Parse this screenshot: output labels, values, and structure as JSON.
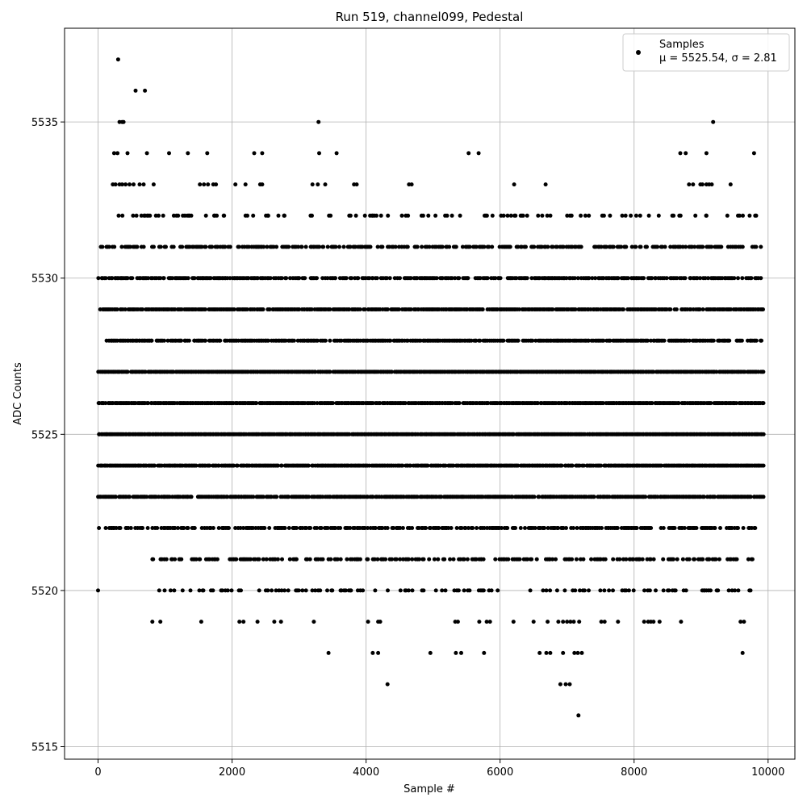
{
  "chart_data": {
    "type": "scatter",
    "title": "Run 519, channel099, Pedestal",
    "xlabel": "Sample #",
    "ylabel": "ADC Counts",
    "xlim": [
      -500,
      10400
    ],
    "ylim": [
      5514.6,
      5538.0
    ],
    "xticks": [
      0,
      2000,
      4000,
      6000,
      8000,
      10000
    ],
    "yticks": [
      5515,
      5520,
      5525,
      5530,
      5535
    ],
    "grid": true,
    "legend": {
      "position": "top-right",
      "entries": [
        {
          "label": "Samples",
          "stats": "μ = 5525.54, σ = 2.81"
        }
      ]
    },
    "series": [
      {
        "name": "Samples",
        "color": "#000000",
        "marker": "circle",
        "n_samples": 10000,
        "levels": [
          {
            "y": 5531,
            "x_start": 0,
            "x_end": 9880,
            "density": 0.55
          },
          {
            "y": 5530,
            "x_start": 0,
            "x_end": 9880,
            "density": 0.7
          },
          {
            "y": 5529,
            "x_start": 0,
            "x_end": 9920,
            "density": 0.85
          },
          {
            "y": 5528,
            "x_start": 0,
            "x_end": 9920,
            "density": 0.8
          },
          {
            "y": 5527,
            "x_start": 0,
            "x_end": 9920,
            "density": 0.97
          },
          {
            "y": 5526,
            "x_start": 0,
            "x_end": 9920,
            "density": 0.97
          },
          {
            "y": 5525,
            "x_start": 0,
            "x_end": 9920,
            "density": 0.97
          },
          {
            "y": 5524,
            "x_start": 0,
            "x_end": 9920,
            "density": 0.95
          },
          {
            "y": 5523,
            "x_start": 0,
            "x_end": 9920,
            "density": 0.85
          },
          {
            "y": 5522,
            "x_start": 0,
            "x_end": 9800,
            "density": 0.6
          },
          {
            "y": 5521,
            "x_start": 800,
            "x_end": 9780,
            "density": 0.5
          },
          {
            "y": 5532,
            "x_start": 100,
            "x_end": 9850,
            "density": 0.22
          },
          {
            "y": 5520,
            "x_start": 850,
            "x_end": 9750,
            "density": 0.22
          }
        ],
        "points": [
          [
            300,
            5537
          ],
          [
            560,
            5536
          ],
          [
            700,
            5536
          ],
          [
            320,
            5535
          ],
          [
            360,
            5535
          ],
          [
            380,
            5535
          ],
          [
            3290,
            5535
          ],
          [
            9180,
            5535
          ],
          [
            240,
            5534
          ],
          [
            290,
            5534
          ],
          [
            440,
            5534
          ],
          [
            730,
            5534
          ],
          [
            1060,
            5534
          ],
          [
            1340,
            5534
          ],
          [
            1630,
            5534
          ],
          [
            2330,
            5534
          ],
          [
            2450,
            5534
          ],
          [
            3300,
            5534
          ],
          [
            3560,
            5534
          ],
          [
            5530,
            5534
          ],
          [
            5680,
            5534
          ],
          [
            8690,
            5534
          ],
          [
            8770,
            5534
          ],
          [
            9080,
            5534
          ],
          [
            9790,
            5534
          ],
          [
            220,
            5533
          ],
          [
            260,
            5533
          ],
          [
            320,
            5533
          ],
          [
            360,
            5533
          ],
          [
            410,
            5533
          ],
          [
            470,
            5533
          ],
          [
            530,
            5533
          ],
          [
            620,
            5533
          ],
          [
            680,
            5533
          ],
          [
            830,
            5533
          ],
          [
            1520,
            5533
          ],
          [
            1580,
            5533
          ],
          [
            1640,
            5533
          ],
          [
            1720,
            5533
          ],
          [
            1760,
            5533
          ],
          [
            2050,
            5533
          ],
          [
            2200,
            5533
          ],
          [
            2420,
            5533
          ],
          [
            2450,
            5533
          ],
          [
            3200,
            5533
          ],
          [
            3280,
            5533
          ],
          [
            3390,
            5533
          ],
          [
            3820,
            5533
          ],
          [
            3860,
            5533
          ],
          [
            4640,
            5533
          ],
          [
            4680,
            5533
          ],
          [
            6210,
            5533
          ],
          [
            6680,
            5533
          ],
          [
            8820,
            5533
          ],
          [
            8880,
            5533
          ],
          [
            8990,
            5533
          ],
          [
            9020,
            5533
          ],
          [
            9080,
            5533
          ],
          [
            9120,
            5533
          ],
          [
            9160,
            5533
          ],
          [
            9440,
            5533
          ],
          [
            0,
            5520
          ],
          [
            5760,
            5518
          ],
          [
            3440,
            5518
          ],
          [
            4100,
            5518
          ],
          [
            4180,
            5518
          ],
          [
            4960,
            5518
          ],
          [
            5340,
            5518
          ],
          [
            5420,
            5518
          ],
          [
            6590,
            5518
          ],
          [
            6690,
            5518
          ],
          [
            6750,
            5518
          ],
          [
            6940,
            5518
          ],
          [
            7110,
            5518
          ],
          [
            7160,
            5518
          ],
          [
            7220,
            5518
          ],
          [
            9620,
            5518
          ],
          [
            4320,
            5517
          ],
          [
            6900,
            5517
          ],
          [
            6980,
            5517
          ],
          [
            7040,
            5517
          ],
          [
            7170,
            5516
          ],
          [
            810,
            5519
          ],
          [
            930,
            5519
          ],
          [
            1540,
            5519
          ],
          [
            2110,
            5519
          ],
          [
            2170,
            5519
          ],
          [
            2380,
            5519
          ],
          [
            2630,
            5519
          ],
          [
            2730,
            5519
          ],
          [
            3220,
            5519
          ],
          [
            4030,
            5519
          ],
          [
            4180,
            5519
          ],
          [
            4210,
            5519
          ],
          [
            5330,
            5519
          ],
          [
            5370,
            5519
          ],
          [
            5690,
            5519
          ],
          [
            5800,
            5519
          ],
          [
            5850,
            5519
          ],
          [
            6200,
            5519
          ],
          [
            6500,
            5519
          ],
          [
            6710,
            5519
          ],
          [
            6870,
            5519
          ],
          [
            6940,
            5519
          ],
          [
            7000,
            5519
          ],
          [
            7050,
            5519
          ],
          [
            7100,
            5519
          ],
          [
            7180,
            5519
          ],
          [
            7510,
            5519
          ],
          [
            7560,
            5519
          ],
          [
            7760,
            5519
          ],
          [
            8150,
            5519
          ],
          [
            8210,
            5519
          ],
          [
            8250,
            5519
          ],
          [
            8290,
            5519
          ],
          [
            8380,
            5519
          ],
          [
            8700,
            5519
          ],
          [
            9590,
            5519
          ],
          [
            9640,
            5519
          ]
        ]
      }
    ]
  }
}
